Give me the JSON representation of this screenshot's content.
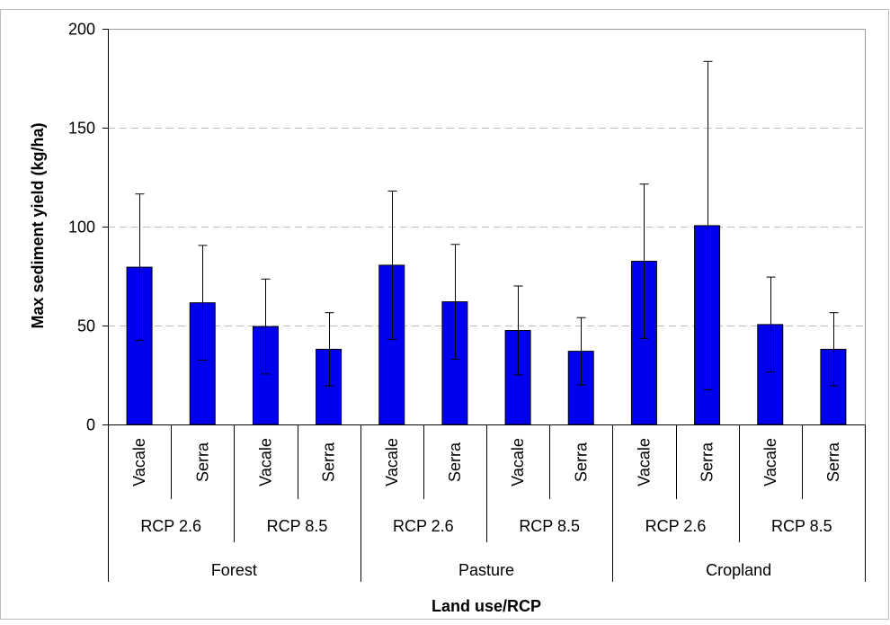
{
  "chart_data": {
    "type": "bar",
    "ylabel": "Max sediment yield (kg/ha)",
    "xlabel": "Land use/RCP",
    "ylim": [
      0,
      200
    ],
    "yticks": [
      0,
      50,
      100,
      150,
      200
    ],
    "grid": "horizontal dashed",
    "colors": {
      "bar": "#0000ee",
      "bar_edge": "#000000",
      "grid": "#bbbbbb",
      "plot_border": "#999999"
    },
    "groups": [
      {
        "land_use": "Forest",
        "rcps": [
          {
            "rcp": "RCP 2.6",
            "sites": [
              "Vacale",
              "Serra"
            ]
          },
          {
            "rcp": "RCP 8.5",
            "sites": [
              "Vacale",
              "Serra"
            ]
          }
        ]
      },
      {
        "land_use": "Pasture",
        "rcps": [
          {
            "rcp": "RCP 2.6",
            "sites": [
              "Vacale",
              "Serra"
            ]
          },
          {
            "rcp": "RCP 8.5",
            "sites": [
              "Vacale",
              "Serra"
            ]
          }
        ]
      },
      {
        "land_use": "Cropland",
        "rcps": [
          {
            "rcp": "RCP 2.6",
            "sites": [
              "Vacale",
              "Serra"
            ]
          },
          {
            "rcp": "RCP 8.5",
            "sites": [
              "Vacale",
              "Serra"
            ]
          }
        ]
      }
    ],
    "values": [
      79.5,
      61.5,
      49.5,
      38,
      80.5,
      62,
      47.5,
      37,
      82.5,
      100.5,
      50.5,
      38
    ],
    "error": [
      37,
      29,
      24,
      18.5,
      37.5,
      29,
      22.5,
      17,
      39,
      83,
      24,
      18.5
    ]
  }
}
